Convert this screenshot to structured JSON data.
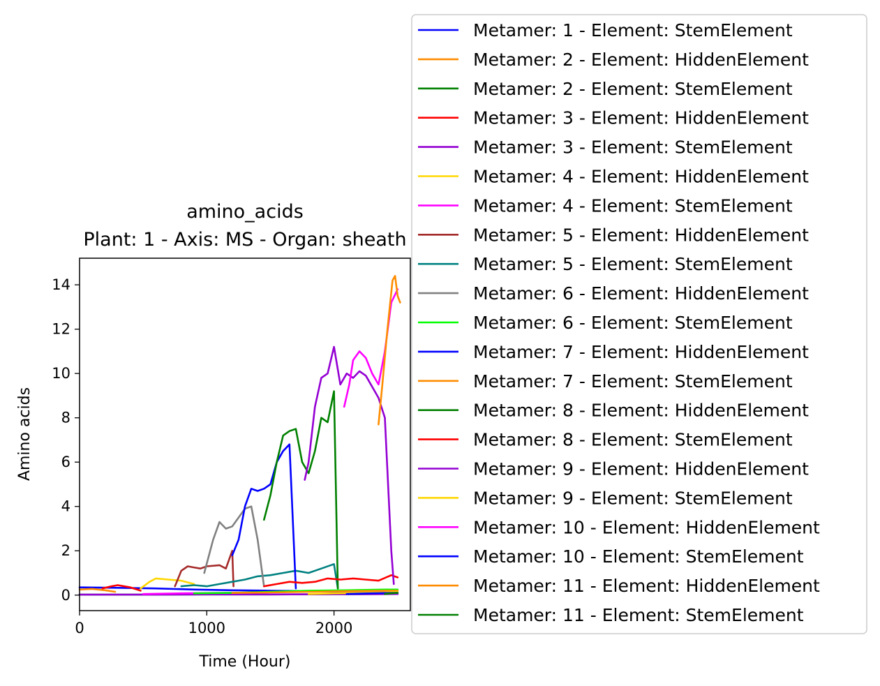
{
  "chart_data": {
    "type": "line",
    "title": "amino_acids",
    "subtitle": "Plant: 1 - Axis: MS - Organ: sheath",
    "xlabel": "Time (Hour)",
    "ylabel": "Amino acids",
    "xlim": [
      0,
      2600
    ],
    "ylim": [
      -0.7,
      15.2
    ],
    "xticks": [
      0,
      1000,
      2000
    ],
    "yticks": [
      0,
      2,
      4,
      6,
      8,
      10,
      12,
      14
    ],
    "grid": false,
    "legend_position": "right-outside",
    "series": [
      {
        "name": "Metamer: 1 - Element: StemElement",
        "color": "#0000ff",
        "x": [
          0,
          300,
          600,
          900,
          1200,
          1500,
          1800,
          2100,
          2400,
          2500
        ],
        "y": [
          0.35,
          0.33,
          0.3,
          0.25,
          0.22,
          0.2,
          0.18,
          0.15,
          0.12,
          0.1
        ]
      },
      {
        "name": "Metamer: 2 - Element: HiddenElement",
        "color": "#ff8c00",
        "x": [
          0,
          100,
          200,
          280
        ],
        "y": [
          0.25,
          0.28,
          0.22,
          0.15
        ]
      },
      {
        "name": "Metamer: 2 - Element: StemElement",
        "color": "#008000",
        "x": [
          0,
          500,
          1000,
          1500,
          2000,
          2500
        ],
        "y": [
          0.02,
          0.02,
          0.03,
          0.03,
          0.04,
          0.05
        ]
      },
      {
        "name": "Metamer: 3 - Element: HiddenElement",
        "color": "#ff0000",
        "x": [
          180,
          250,
          300,
          400,
          480
        ],
        "y": [
          0.3,
          0.4,
          0.45,
          0.35,
          0.2
        ]
      },
      {
        "name": "Metamer: 3 - Element: StemElement",
        "color": "#9400d3",
        "x": [
          0,
          500,
          1000,
          1500,
          2000,
          2500
        ],
        "y": [
          0.02,
          0.02,
          0.03,
          0.03,
          0.04,
          0.05
        ]
      },
      {
        "name": "Metamer: 4 - Element: HiddenElement",
        "color": "#ffd700",
        "x": [
          480,
          550,
          600,
          700,
          800,
          900
        ],
        "y": [
          0.3,
          0.6,
          0.75,
          0.7,
          0.65,
          0.5
        ]
      },
      {
        "name": "Metamer: 4 - Element: StemElement",
        "color": "#ff00ff",
        "x": [
          500,
          800,
          1100,
          1400,
          1700,
          2000,
          2500
        ],
        "y": [
          0.05,
          0.08,
          0.1,
          0.12,
          0.15,
          0.18,
          0.2
        ]
      },
      {
        "name": "Metamer: 5 - Element: HiddenElement",
        "color": "#a52a2a",
        "x": [
          750,
          800,
          850,
          900,
          950,
          1000,
          1100,
          1150,
          1200,
          1210
        ],
        "y": [
          0.4,
          1.1,
          1.3,
          1.25,
          1.2,
          1.3,
          1.35,
          1.2,
          2.0,
          0.4
        ]
      },
      {
        "name": "Metamer: 5 - Element: StemElement",
        "color": "#008080",
        "x": [
          800,
          900,
          1000,
          1100,
          1200,
          1300,
          1400,
          1500,
          1600,
          1700,
          1800,
          1900,
          2000,
          2030
        ],
        "y": [
          0.4,
          0.45,
          0.4,
          0.5,
          0.6,
          0.7,
          0.85,
          0.9,
          1.0,
          1.1,
          1.0,
          1.2,
          1.4,
          0.3
        ]
      },
      {
        "name": "Metamer: 6 - Element: HiddenElement",
        "color": "#808080",
        "x": [
          980,
          1050,
          1100,
          1150,
          1200,
          1250,
          1300,
          1350,
          1400,
          1450
        ],
        "y": [
          1.0,
          2.5,
          3.3,
          3.0,
          3.1,
          3.5,
          3.9,
          4.0,
          2.5,
          0.4
        ]
      },
      {
        "name": "Metamer: 6 - Element: StemElement",
        "color": "#00ff00",
        "x": [
          900,
          1200,
          1500,
          1800,
          2100,
          2400,
          2500
        ],
        "y": [
          0.08,
          0.1,
          0.15,
          0.2,
          0.22,
          0.25,
          0.25
        ]
      },
      {
        "name": "Metamer: 7 - Element: HiddenElement",
        "color": "#0000ff",
        "x": [
          1200,
          1250,
          1300,
          1350,
          1400,
          1450,
          1500,
          1550,
          1600,
          1650,
          1700
        ],
        "y": [
          1.8,
          2.5,
          4.0,
          4.8,
          4.7,
          4.8,
          5.0,
          6.0,
          6.5,
          6.8,
          0.3
        ]
      },
      {
        "name": "Metamer: 7 - Element: StemElement",
        "color": "#ff8c00",
        "x": [
          1200,
          1500,
          1800,
          2100,
          2400,
          2500
        ],
        "y": [
          0.1,
          0.12,
          0.15,
          0.18,
          0.2,
          0.2
        ]
      },
      {
        "name": "Metamer: 8 - Element: HiddenElement",
        "color": "#008000",
        "x": [
          1450,
          1500,
          1550,
          1600,
          1650,
          1700,
          1750,
          1800,
          1850,
          1900,
          1950,
          2000,
          2030
        ],
        "y": [
          3.4,
          4.5,
          6.0,
          7.2,
          7.4,
          7.5,
          6.0,
          5.5,
          6.5,
          8.0,
          7.8,
          9.2,
          0.3
        ]
      },
      {
        "name": "Metamer: 8 - Element: StemElement",
        "color": "#ff0000",
        "x": [
          1450,
          1550,
          1650,
          1750,
          1850,
          1950,
          2050,
          2150,
          2250,
          2350,
          2450,
          2500
        ],
        "y": [
          0.4,
          0.5,
          0.6,
          0.55,
          0.6,
          0.75,
          0.7,
          0.75,
          0.7,
          0.65,
          0.9,
          0.8
        ]
      },
      {
        "name": "Metamer: 9 - Element: HiddenElement",
        "color": "#9400d3",
        "x": [
          1770,
          1800,
          1850,
          1900,
          1950,
          2000,
          2050,
          2100,
          2150,
          2200,
          2250,
          2300,
          2350,
          2400,
          2450,
          2470
        ],
        "y": [
          5.2,
          6.0,
          8.5,
          9.8,
          10.0,
          11.2,
          9.5,
          10.0,
          9.8,
          10.1,
          9.9,
          9.4,
          8.9,
          8.0,
          2.0,
          0.5
        ]
      },
      {
        "name": "Metamer: 9 - Element: StemElement",
        "color": "#ffd700",
        "x": [
          1800,
          2000,
          2200,
          2400,
          2500
        ],
        "y": [
          0.05,
          0.08,
          0.1,
          0.12,
          0.15
        ]
      },
      {
        "name": "Metamer: 10 - Element: HiddenElement",
        "color": "#ff00ff",
        "x": [
          2080,
          2120,
          2150,
          2200,
          2250,
          2300,
          2350,
          2400,
          2450,
          2500
        ],
        "y": [
          8.5,
          9.5,
          10.6,
          11.0,
          10.7,
          10.0,
          9.5,
          11.0,
          13.2,
          13.8
        ]
      },
      {
        "name": "Metamer: 10 - Element: StemElement",
        "color": "#0000ff",
        "x": [
          2100,
          2300,
          2500
        ],
        "y": [
          0.05,
          0.08,
          0.1
        ]
      },
      {
        "name": "Metamer: 11 - Element: HiddenElement",
        "color": "#ff8c00",
        "x": [
          2350,
          2380,
          2420,
          2460,
          2480,
          2500,
          2520
        ],
        "y": [
          7.7,
          9.5,
          12.0,
          14.2,
          14.4,
          13.5,
          13.2
        ]
      },
      {
        "name": "Metamer: 11 - Element: StemElement",
        "color": "#008000",
        "x": [
          2400,
          2450,
          2500
        ],
        "y": [
          0.05,
          0.08,
          0.1
        ]
      }
    ]
  }
}
